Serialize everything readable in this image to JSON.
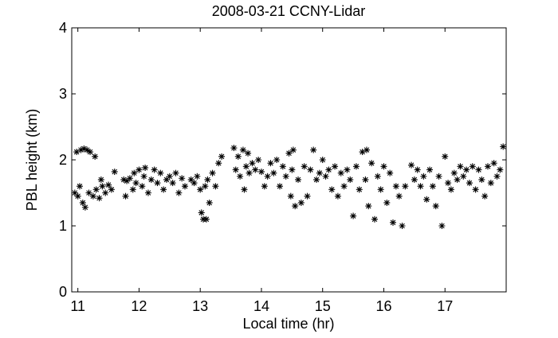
{
  "chart_data": {
    "type": "scatter",
    "title": "2008-03-21 CCNY-Lidar",
    "x_label": "Local time (hr)",
    "y_label": "PBL height (km)",
    "x": [
      10.95,
      10.98,
      11.0,
      11.03,
      11.05,
      11.08,
      11.1,
      11.12,
      11.15,
      11.18,
      11.2,
      11.25,
      11.28,
      11.3,
      11.35,
      11.38,
      11.4,
      11.45,
      11.5,
      11.55,
      11.6,
      11.75,
      11.78,
      11.8,
      11.85,
      11.9,
      11.92,
      11.95,
      12.0,
      12.05,
      12.08,
      12.1,
      12.15,
      12.2,
      12.25,
      12.3,
      12.35,
      12.4,
      12.45,
      12.5,
      12.55,
      12.6,
      12.65,
      12.7,
      12.75,
      12.85,
      12.9,
      12.95,
      13.0,
      13.02,
      13.05,
      13.08,
      13.1,
      13.12,
      13.15,
      13.2,
      13.25,
      13.3,
      13.35,
      13.55,
      13.58,
      13.62,
      13.65,
      13.7,
      13.72,
      13.75,
      13.78,
      13.8,
      13.85,
      13.9,
      13.95,
      14.0,
      14.05,
      14.1,
      14.15,
      14.2,
      14.25,
      14.3,
      14.35,
      14.4,
      14.45,
      14.48,
      14.5,
      14.52,
      14.55,
      14.6,
      14.65,
      14.7,
      14.75,
      14.8,
      14.85,
      14.9,
      14.95,
      15.0,
      15.05,
      15.1,
      15.15,
      15.2,
      15.25,
      15.3,
      15.35,
      15.4,
      15.45,
      15.5,
      15.55,
      15.6,
      15.65,
      15.7,
      15.72,
      15.75,
      15.8,
      15.85,
      15.9,
      15.95,
      16.0,
      16.05,
      16.1,
      16.15,
      16.2,
      16.25,
      16.3,
      16.35,
      16.45,
      16.5,
      16.55,
      16.6,
      16.65,
      16.7,
      16.75,
      16.8,
      16.85,
      16.9,
      16.95,
      17.0,
      17.05,
      17.1,
      17.15,
      17.2,
      17.25,
      17.3,
      17.35,
      17.4,
      17.45,
      17.5,
      17.55,
      17.6,
      17.65,
      17.7,
      17.75,
      17.8,
      17.85,
      17.9,
      17.95
    ],
    "values": [
      1.5,
      2.12,
      1.45,
      1.6,
      2.15,
      1.35,
      2.17,
      1.28,
      2.15,
      1.5,
      2.12,
      1.45,
      2.05,
      1.55,
      1.42,
      1.7,
      1.6,
      1.5,
      1.62,
      1.55,
      1.82,
      1.7,
      1.45,
      1.68,
      1.72,
      1.55,
      1.8,
      1.65,
      1.85,
      1.6,
      1.75,
      1.88,
      1.5,
      1.7,
      1.85,
      1.65,
      1.8,
      1.55,
      1.7,
      1.75,
      1.65,
      1.8,
      1.5,
      1.72,
      1.6,
      1.7,
      1.65,
      1.75,
      1.55,
      1.2,
      1.1,
      1.6,
      1.1,
      1.7,
      1.35,
      1.8,
      1.6,
      1.95,
      2.05,
      2.18,
      1.85,
      2.05,
      1.75,
      2.15,
      1.55,
      1.9,
      2.1,
      1.8,
      1.95,
      1.85,
      2.0,
      1.82,
      1.6,
      1.75,
      1.95,
      1.8,
      2.0,
      1.6,
      1.9,
      1.75,
      2.1,
      1.45,
      1.85,
      2.15,
      1.3,
      1.7,
      1.35,
      1.9,
      1.45,
      1.85,
      2.15,
      1.7,
      1.8,
      2.0,
      1.75,
      1.85,
      1.55,
      1.9,
      1.45,
      1.8,
      1.6,
      1.85,
      1.7,
      1.15,
      1.9,
      1.55,
      2.12,
      1.7,
      2.15,
      1.3,
      1.95,
      1.1,
      1.75,
      1.55,
      1.9,
      1.35,
      1.8,
      1.05,
      1.6,
      1.45,
      1.0,
      1.6,
      1.92,
      1.7,
      1.85,
      1.6,
      1.75,
      1.4,
      1.85,
      1.6,
      1.3,
      1.75,
      1.0,
      2.05,
      1.65,
      1.55,
      1.8,
      1.7,
      1.9,
      1.75,
      1.85,
      1.65,
      1.9,
      1.55,
      1.85,
      1.7,
      1.45,
      1.9,
      1.65,
      1.95,
      1.75,
      1.85,
      2.2
    ],
    "color": "#000000",
    "xlim": [
      10.9,
      18.0
    ],
    "xticks": [
      11,
      12,
      13,
      14,
      15,
      16,
      17
    ],
    "ylim": [
      0,
      4
    ],
    "yticks": [
      0,
      1,
      2,
      3,
      4
    ],
    "grid": false
  }
}
